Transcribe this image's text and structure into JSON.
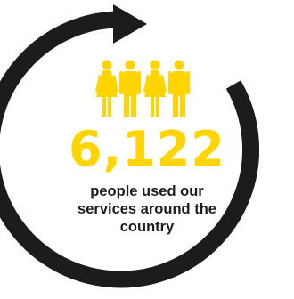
{
  "stat": {
    "value": "6,122",
    "caption_lines": [
      "people used our",
      "services around the",
      "country"
    ]
  },
  "colors": {
    "accent": "#ffd400",
    "ring": "#1c1c1c",
    "text": "#1c1c1c",
    "background": "#ffffff"
  },
  "icons": {
    "cycle": "circular-arrow-icon",
    "figures": [
      "woman-icon",
      "man-icon",
      "woman-icon",
      "man-icon"
    ]
  }
}
